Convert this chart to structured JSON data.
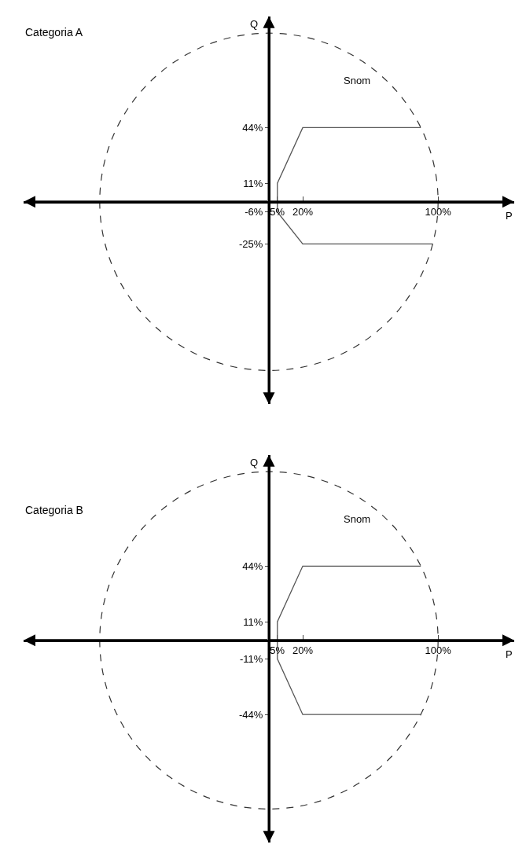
{
  "chart_data": [
    {
      "type": "line",
      "title": "Categoria A",
      "xlabel": "P",
      "ylabel": "Q",
      "xlim": [
        -145,
        145
      ],
      "ylim": [
        -120,
        110
      ],
      "xticks": [
        {
          "value": 5,
          "label": "5%"
        },
        {
          "value": 20,
          "label": "20%"
        },
        {
          "value": 100,
          "label": "100%"
        }
      ],
      "yticks": [
        {
          "value": 44,
          "label": "44%"
        },
        {
          "value": 11,
          "label": "11%"
        },
        {
          "value": -6,
          "label": "-6%"
        },
        {
          "value": -25,
          "label": "-25%"
        }
      ],
      "marker": "none",
      "annotations": [
        "Snom"
      ],
      "series": [
        {
          "color": "#555555",
          "line_style": "solid",
          "x": [
            89.8,
            20,
            5,
            5,
            20,
            96.8
          ],
          "values": [
            44,
            44,
            11,
            -6,
            -25,
            -25
          ]
        }
      ]
    },
    {
      "type": "line",
      "title": "Categoria B",
      "xlabel": "P",
      "ylabel": "Q",
      "xlim": [
        -145,
        145
      ],
      "ylim": [
        -120,
        110
      ],
      "xticks": [
        {
          "value": 5,
          "label": "5%"
        },
        {
          "value": 20,
          "label": "20%"
        },
        {
          "value": 100,
          "label": "100%"
        }
      ],
      "yticks": [
        {
          "value": 44,
          "label": "44%"
        },
        {
          "value": 11,
          "label": "11%"
        },
        {
          "value": -11,
          "label": "-11%"
        },
        {
          "value": -44,
          "label": "-44%"
        }
      ],
      "marker": "none",
      "annotations": [
        "Snom"
      ],
      "series": [
        {
          "color": "#555555",
          "line_style": "solid",
          "x": [
            89.8,
            20,
            5,
            5,
            20,
            89.8
          ],
          "values": [
            44,
            44,
            11,
            -11,
            -44,
            -44
          ]
        }
      ]
    }
  ]
}
